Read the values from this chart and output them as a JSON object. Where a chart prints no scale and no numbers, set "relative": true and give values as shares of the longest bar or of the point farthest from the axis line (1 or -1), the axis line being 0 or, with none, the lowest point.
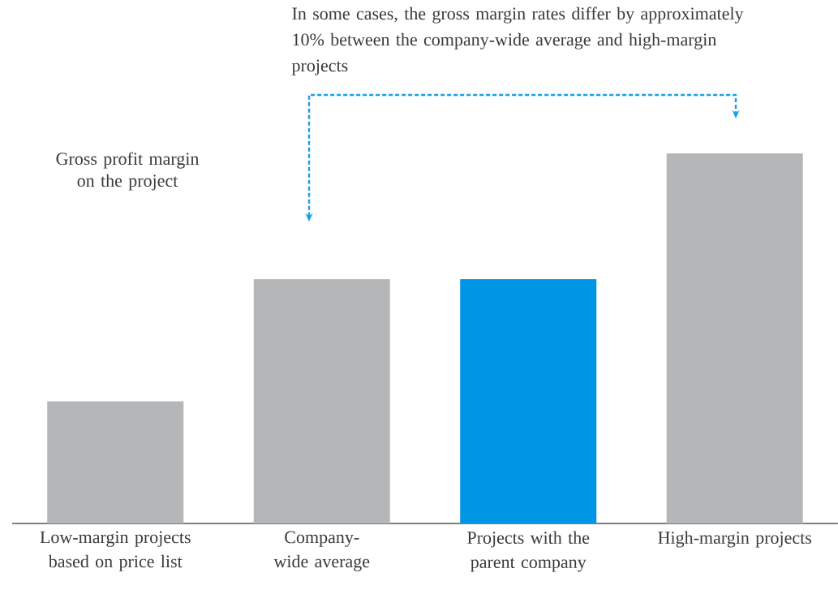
{
  "chart_data": {
    "type": "bar",
    "relative": true,
    "ylabel": "Gross profit margin on the project",
    "categories": [
      "Low-margin projects based on price list",
      "Company-wide average",
      "Projects with the parent company",
      "High-margin projects"
    ],
    "values": [
      0.33,
      0.66,
      0.66,
      1
    ],
    "colors": [
      "#b5b6b8",
      "#b5b6b8",
      "#0096e6",
      "#b5b6b8"
    ],
    "annotations": [
      "In some cases, the gross margin rates differ by approximately 10% between the company-wide average and high-margin projects"
    ]
  }
}
